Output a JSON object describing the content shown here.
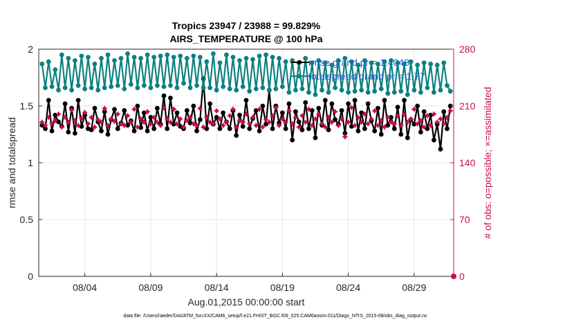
{
  "chart_data": {
    "type": "line",
    "title": "Tropics 23947 / 23988 = 99.829%",
    "subtitle": "AIRS_TEMPERATURE @ 100 hPa",
    "xlabel": "Aug.01,2015 00:00:00 start",
    "ylabel": "rmse and totalspread",
    "ylabel_right": "# of obs: o=possible; ×=assimilated",
    "x_tick_labels": [
      "08/04",
      "08/09",
      "08/14",
      "08/19",
      "08/24",
      "08/29"
    ],
    "x_tick_days": [
      4,
      9,
      14,
      19,
      24,
      29
    ],
    "xlim_days": [
      0.5,
      32
    ],
    "ylim": [
      0,
      2
    ],
    "y_ticks": [
      "0",
      "0.5",
      "1",
      "1.5",
      "2"
    ],
    "ylim_right": [
      0,
      280
    ],
    "y_ticks_right": [
      "0",
      "70",
      "140",
      "210",
      "280"
    ],
    "grid": true,
    "legend_position": "top-right",
    "legend": [
      "rmse grand pr = 1.4048",
      "totalspread grand pr = 1.77"
    ],
    "colors": {
      "rmse": "#000000",
      "totalspread": "#0e8080",
      "obs": "#cc0a55"
    },
    "footer": "data file: /Users/raeder/DAI/ATM_forcXX/CAM6_setup/f.e21.FHIST_BGC.f09_025.CAM6assim.011/Diags_NTrS_2015-08/obs_diag_output.nc",
    "series": [
      {
        "name": "rmse",
        "x": [
          0.75,
          1.0,
          1.25,
          1.5,
          1.75,
          2.0,
          2.25,
          2.5,
          2.75,
          3.0,
          3.25,
          3.5,
          3.75,
          4.0,
          4.25,
          4.5,
          4.75,
          5.0,
          5.25,
          5.5,
          5.75,
          6.0,
          6.25,
          6.5,
          6.75,
          7.0,
          7.25,
          7.5,
          7.75,
          8.0,
          8.25,
          8.5,
          8.75,
          9.0,
          9.25,
          9.5,
          9.75,
          10.0,
          10.25,
          10.5,
          10.75,
          11.0,
          11.25,
          11.5,
          11.75,
          12.0,
          12.25,
          12.5,
          12.75,
          13.0,
          13.25,
          13.5,
          13.75,
          14.0,
          14.25,
          14.5,
          14.75,
          15.0,
          15.25,
          15.5,
          15.75,
          16.0,
          16.25,
          16.5,
          16.75,
          17.0,
          17.25,
          17.5,
          17.75,
          18.0,
          18.25,
          18.5,
          18.75,
          19.0,
          19.25,
          19.5,
          19.75,
          20.0,
          20.25,
          20.5,
          20.75,
          21.0,
          21.25,
          21.5,
          21.75,
          22.0,
          22.25,
          22.5,
          22.75,
          23.0,
          23.25,
          23.5,
          23.75,
          24.0,
          24.25,
          24.5,
          24.75,
          25.0,
          25.25,
          25.5,
          25.75,
          26.0,
          26.25,
          26.5,
          26.75,
          27.0,
          27.25,
          27.5,
          27.75,
          28.0,
          28.25,
          28.5,
          28.75,
          29.0,
          29.25,
          29.5,
          29.75,
          30.0,
          30.25,
          30.5,
          30.75,
          31.0,
          31.25,
          31.5,
          31.75
        ],
        "values": [
          1.33,
          1.3,
          1.55,
          1.28,
          1.42,
          1.36,
          1.32,
          1.52,
          1.27,
          1.48,
          1.26,
          1.55,
          1.32,
          1.42,
          1.3,
          1.29,
          1.48,
          1.36,
          1.28,
          1.45,
          1.25,
          1.38,
          1.47,
          1.3,
          1.35,
          1.46,
          1.33,
          1.37,
          1.28,
          1.5,
          1.31,
          1.44,
          1.28,
          1.4,
          1.3,
          1.48,
          1.34,
          1.59,
          1.3,
          1.57,
          1.34,
          1.44,
          1.32,
          1.3,
          1.46,
          1.35,
          1.5,
          1.28,
          1.38,
          1.74,
          1.3,
          1.52,
          1.34,
          1.4,
          1.3,
          1.44,
          1.36,
          1.3,
          1.46,
          1.24,
          1.42,
          1.32,
          1.55,
          1.3,
          1.39,
          1.46,
          1.28,
          1.5,
          1.34,
          1.64,
          1.3,
          1.5,
          1.35,
          1.44,
          1.3,
          1.52,
          1.2,
          1.45,
          1.36,
          1.29,
          1.53,
          1.3,
          1.46,
          1.22,
          1.48,
          1.33,
          1.55,
          1.29,
          1.52,
          1.38,
          1.34,
          1.46,
          1.26,
          1.52,
          1.32,
          1.55,
          1.28,
          1.44,
          1.3,
          1.52,
          1.37,
          1.28,
          1.48,
          1.25,
          1.55,
          1.33,
          1.4,
          1.3,
          1.49,
          1.25,
          1.55,
          1.22,
          1.38,
          1.34,
          1.5,
          1.27,
          1.45,
          1.3,
          1.42,
          1.2,
          1.34,
          1.12,
          1.45,
          1.3,
          1.5
        ]
      },
      {
        "name": "totalspread",
        "x": [
          0.75,
          1.0,
          1.25,
          1.5,
          1.75,
          2.0,
          2.25,
          2.5,
          2.75,
          3.0,
          3.25,
          3.5,
          3.75,
          4.0,
          4.25,
          4.5,
          4.75,
          5.0,
          5.25,
          5.5,
          5.75,
          6.0,
          6.25,
          6.5,
          6.75,
          7.0,
          7.25,
          7.5,
          7.75,
          8.0,
          8.25,
          8.5,
          8.75,
          9.0,
          9.25,
          9.5,
          9.75,
          10.0,
          10.25,
          10.5,
          10.75,
          11.0,
          11.25,
          11.5,
          11.75,
          12.0,
          12.25,
          12.5,
          12.75,
          13.0,
          13.25,
          13.5,
          13.75,
          14.0,
          14.25,
          14.5,
          14.75,
          15.0,
          15.25,
          15.5,
          15.75,
          16.0,
          16.25,
          16.5,
          16.75,
          17.0,
          17.25,
          17.5,
          17.75,
          18.0,
          18.25,
          18.5,
          18.75,
          19.0,
          19.25,
          19.5,
          19.75,
          20.0,
          20.25,
          20.5,
          20.75,
          21.0,
          21.25,
          21.5,
          21.75,
          22.0,
          22.25,
          22.5,
          22.75,
          23.0,
          23.25,
          23.5,
          23.75,
          24.0,
          24.25,
          24.5,
          24.75,
          25.0,
          25.25,
          25.5,
          25.75,
          26.0,
          26.25,
          26.5,
          26.75,
          27.0,
          27.25,
          27.5,
          27.75,
          28.0,
          28.25,
          28.5,
          28.75,
          29.0,
          29.25,
          29.5,
          29.75,
          30.0,
          30.25,
          30.5,
          30.75,
          31.0,
          31.25,
          31.5,
          31.75
        ],
        "values": [
          1.87,
          1.66,
          1.89,
          1.67,
          1.82,
          1.64,
          1.95,
          1.66,
          1.92,
          1.64,
          1.9,
          1.68,
          1.94,
          1.65,
          1.93,
          1.66,
          1.87,
          1.64,
          1.92,
          1.66,
          1.95,
          1.67,
          1.9,
          1.68,
          1.92,
          1.65,
          1.96,
          1.69,
          1.93,
          1.66,
          1.92,
          1.68,
          1.95,
          1.66,
          1.93,
          1.68,
          1.94,
          1.67,
          1.95,
          1.68,
          1.93,
          1.66,
          1.94,
          1.7,
          1.92,
          1.66,
          1.94,
          1.68,
          1.93,
          1.66,
          1.89,
          1.66,
          1.96,
          1.64,
          1.88,
          1.67,
          1.95,
          1.65,
          1.93,
          1.64,
          1.9,
          1.67,
          1.92,
          1.63,
          1.91,
          1.65,
          1.94,
          1.66,
          1.95,
          1.64,
          1.93,
          1.65,
          1.92,
          1.67,
          1.89,
          1.62,
          1.9,
          1.64,
          1.88,
          1.65,
          1.92,
          1.62,
          1.88,
          1.6,
          1.9,
          1.64,
          1.88,
          1.62,
          1.86,
          1.66,
          1.9,
          1.64,
          1.92,
          1.62,
          1.89,
          1.63,
          1.86,
          1.64,
          1.9,
          1.62,
          1.88,
          1.63,
          1.87,
          1.65,
          1.89,
          1.61,
          1.9,
          1.62,
          1.88,
          1.63,
          1.87,
          1.6,
          1.89,
          1.64,
          1.86,
          1.62,
          1.88,
          1.66,
          1.87,
          1.62,
          1.86,
          1.64,
          1.88,
          1.68,
          1.63
        ]
      },
      {
        "name": "obs",
        "axis": "right",
        "x": [
          0.75,
          1.0,
          1.25,
          1.5,
          1.75,
          2.0,
          2.25,
          2.5,
          2.75,
          3.0,
          3.25,
          3.5,
          3.75,
          4.0,
          4.25,
          4.5,
          4.75,
          5.0,
          5.25,
          5.5,
          5.75,
          6.0,
          6.25,
          6.5,
          6.75,
          7.0,
          7.25,
          7.5,
          7.75,
          8.0,
          8.25,
          8.5,
          8.75,
          9.0,
          9.25,
          9.5,
          9.75,
          10.0,
          10.25,
          10.5,
          10.75,
          11.0,
          11.25,
          11.5,
          11.75,
          12.0,
          12.25,
          12.5,
          12.75,
          13.0,
          13.25,
          13.5,
          13.75,
          14.0,
          14.25,
          14.5,
          14.75,
          15.0,
          15.25,
          15.5,
          15.75,
          16.0,
          16.25,
          16.5,
          16.75,
          17.0,
          17.25,
          17.5,
          17.75,
          18.0,
          18.25,
          18.5,
          18.75,
          19.0,
          19.25,
          19.5,
          19.75,
          20.0,
          20.25,
          20.5,
          20.75,
          21.0,
          21.25,
          21.5,
          21.75,
          22.0,
          22.25,
          22.5,
          22.75,
          23.0,
          23.25,
          23.5,
          23.75,
          24.0,
          24.25,
          24.5,
          24.75,
          25.0,
          25.25,
          25.5,
          25.75,
          26.0,
          26.25,
          26.5,
          26.75,
          27.0,
          27.25,
          27.5,
          27.75,
          28.0,
          28.25,
          28.5,
          28.75,
          29.0,
          29.25,
          29.5,
          29.75,
          30.0,
          30.25,
          30.5,
          30.75,
          31.0,
          31.25,
          31.5,
          31.75
        ],
        "values": [
          190,
          186,
          196,
          188,
          192,
          200,
          184,
          196,
          190,
          205,
          192,
          186,
          195,
          202,
          188,
          196,
          184,
          193,
          190,
          207,
          186,
          194,
          191,
          200,
          188,
          186,
          198,
          190,
          206,
          184,
          194,
          190,
          203,
          188,
          196,
          190,
          186,
          208,
          194,
          190,
          206,
          188,
          194,
          184,
          192,
          196,
          188,
          186,
          207,
          184,
          196,
          190,
          188,
          204,
          194,
          186,
          190,
          198,
          206,
          184,
          192,
          190,
          200,
          188,
          196,
          186,
          206,
          184,
          193,
          190,
          198,
          208,
          186,
          194,
          190,
          204,
          188,
          196,
          184,
          198,
          190,
          206,
          186,
          194,
          200,
          188,
          184,
          196,
          190,
          203,
          186,
          194,
          172,
          190,
          208,
          186,
          196,
          190,
          200,
          188,
          194,
          204,
          186,
          192,
          184,
          196,
          190,
          188,
          198,
          186,
          200,
          190,
          194,
          206,
          188,
          192,
          184,
          198,
          186,
          200,
          190,
          194,
          188,
          196,
          204
        ]
      }
    ]
  }
}
